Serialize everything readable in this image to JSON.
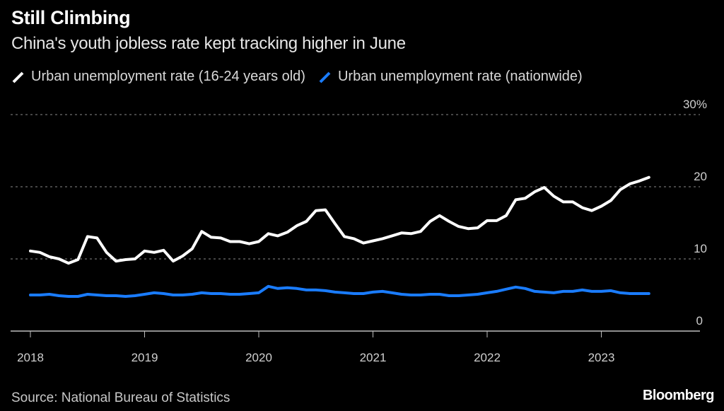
{
  "header": {
    "title": "Still Climbing",
    "subtitle": "China's youth jobless rate kept tracking higher in June"
  },
  "legend": [
    {
      "label": "Urban unemployment rate (16-24 years old)",
      "color": "#ffffff",
      "icon": "diagonal-line-icon"
    },
    {
      "label": "Urban unemployment rate (nationwide)",
      "color": "#1a7cff",
      "icon": "diagonal-line-icon"
    }
  ],
  "footer": {
    "source": "Source: National Bureau of Statistics",
    "brand": "Bloomberg"
  },
  "chart_data": {
    "type": "line",
    "title": "Still Climbing",
    "subtitle": "China's youth jobless rate kept tracking higher in June",
    "xlabel": "",
    "ylabel": "",
    "x_start": "2018-01",
    "x_end": "2023-06",
    "frequency": "monthly",
    "x_ticks": [
      "2018",
      "2019",
      "2020",
      "2021",
      "2022",
      "2023"
    ],
    "x_range": [
      "2018-01",
      "2023-12"
    ],
    "y_ticks": [
      {
        "value": 0,
        "label": "0"
      },
      {
        "value": 10,
        "label": "10"
      },
      {
        "value": 20,
        "label": "20"
      },
      {
        "value": 30,
        "label": "30%"
      }
    ],
    "ylim": [
      0,
      30
    ],
    "grid": true,
    "y_axis_position": "right",
    "legend_position": "top-left",
    "series": [
      {
        "name": "Urban unemployment rate (16-24 years old)",
        "color": "#ffffff",
        "values": [
          11.1,
          10.9,
          10.3,
          10.0,
          9.4,
          9.9,
          13.1,
          12.9,
          10.9,
          9.7,
          9.9,
          10.0,
          11.1,
          10.9,
          11.2,
          9.7,
          10.4,
          11.4,
          13.8,
          13.0,
          12.9,
          12.4,
          12.4,
          12.1,
          12.4,
          13.5,
          13.2,
          13.7,
          14.6,
          15.2,
          16.7,
          16.8,
          14.9,
          13.1,
          12.8,
          12.2,
          12.5,
          12.8,
          13.2,
          13.6,
          13.5,
          13.8,
          15.2,
          16.0,
          15.2,
          14.5,
          14.2,
          14.3,
          15.3,
          15.3,
          16.0,
          18.2,
          18.4,
          19.3,
          19.9,
          18.7,
          17.9,
          17.9,
          17.1,
          16.7,
          17.3,
          18.1,
          19.6,
          20.4,
          20.8,
          21.3
        ]
      },
      {
        "name": "Urban unemployment rate (nationwide)",
        "color": "#1a7cff",
        "values": [
          5.0,
          5.0,
          5.1,
          4.9,
          4.8,
          4.8,
          5.1,
          5.0,
          4.9,
          4.9,
          4.8,
          4.9,
          5.1,
          5.3,
          5.2,
          5.0,
          5.0,
          5.1,
          5.3,
          5.2,
          5.2,
          5.1,
          5.1,
          5.2,
          5.3,
          6.2,
          5.9,
          6.0,
          5.9,
          5.7,
          5.7,
          5.6,
          5.4,
          5.3,
          5.2,
          5.2,
          5.4,
          5.5,
          5.3,
          5.1,
          5.0,
          5.0,
          5.1,
          5.1,
          4.9,
          4.9,
          5.0,
          5.1,
          5.3,
          5.5,
          5.8,
          6.1,
          5.9,
          5.5,
          5.4,
          5.3,
          5.5,
          5.5,
          5.7,
          5.5,
          5.5,
          5.6,
          5.3,
          5.2,
          5.2,
          5.2
        ]
      }
    ]
  }
}
